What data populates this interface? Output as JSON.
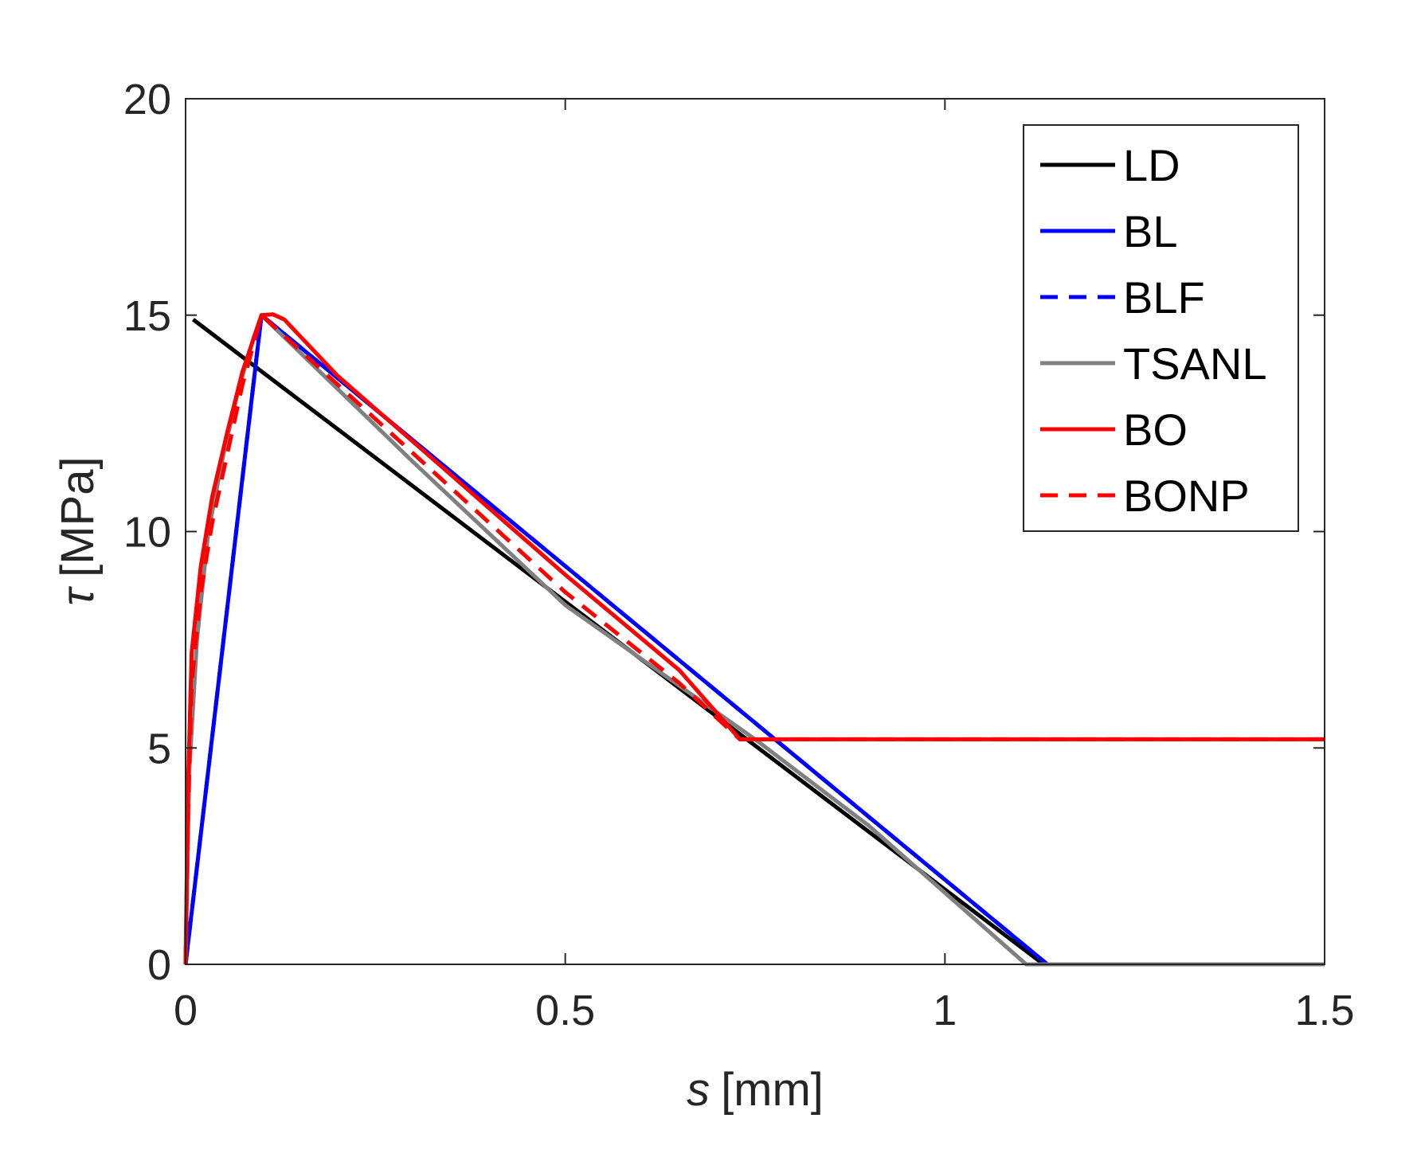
{
  "chart_data": {
    "type": "line",
    "title": "",
    "xlabel": {
      "symbol": "s",
      "unit": "[mm]"
    },
    "ylabel": {
      "symbol": "τ",
      "unit": "[MPa]"
    },
    "xlim": [
      0,
      1.5
    ],
    "ylim": [
      0,
      20
    ],
    "xticks": [
      0,
      0.5,
      1,
      1.5
    ],
    "xtick_labels": [
      "0",
      "0.5",
      "1",
      "1.5"
    ],
    "yticks": [
      0,
      5,
      10,
      15,
      20
    ],
    "ytick_labels": [
      "0",
      "5",
      "10",
      "15",
      "20"
    ],
    "grid": false,
    "legend_position": "top-right",
    "series": [
      {
        "name": "LD",
        "color": "#000000",
        "dash": "solid",
        "x": [
          0.01,
          0.1,
          1.13,
          1.5
        ],
        "y": [
          14.9,
          13.7,
          0,
          0
        ]
      },
      {
        "name": "BL",
        "color": "#0000ff",
        "dash": "solid",
        "x": [
          0,
          0.1,
          1.135,
          1.5
        ],
        "y": [
          0,
          15,
          0,
          0
        ]
      },
      {
        "name": "BLF",
        "color": "#0000ff",
        "dash": "dashed",
        "x": [
          0,
          0.1,
          1.135,
          1.5
        ],
        "y": [
          0,
          15,
          0,
          0
        ]
      },
      {
        "name": "TSANL",
        "color": "#808080",
        "dash": "solid",
        "x": [
          0,
          0.005,
          0.015,
          0.03,
          0.05,
          0.07,
          0.09,
          0.1,
          0.3,
          0.5,
          0.75,
          0.9,
          1.107,
          1.5
        ],
        "y": [
          0,
          4.5,
          7.5,
          10.0,
          11.8,
          13.3,
          14.5,
          15,
          11.6,
          8.3,
          5.2,
          3.2,
          0,
          0
        ]
      },
      {
        "name": "BO",
        "color": "#ff0000",
        "dash": "solid",
        "x": [
          0,
          0.003,
          0.008,
          0.02,
          0.035,
          0.055,
          0.075,
          0.1,
          0.115,
          0.13,
          0.2,
          0.35,
          0.5,
          0.65,
          0.73,
          1.5
        ],
        "y": [
          0,
          4.0,
          7.2,
          9.2,
          10.8,
          12.3,
          13.7,
          15,
          15.02,
          14.9,
          13.6,
          11.3,
          9.0,
          6.8,
          5.2,
          5.2
        ]
      },
      {
        "name": "BONP",
        "color": "#ff0000",
        "dash": "dashed",
        "x": [
          0,
          0.003,
          0.008,
          0.02,
          0.035,
          0.055,
          0.075,
          0.1,
          0.2,
          0.35,
          0.5,
          0.65,
          0.73,
          1.5
        ],
        "y": [
          0,
          3.5,
          6.5,
          8.6,
          10.2,
          11.8,
          13.4,
          15,
          13.4,
          11.0,
          8.6,
          6.5,
          5.2,
          5.2
        ]
      }
    ]
  }
}
